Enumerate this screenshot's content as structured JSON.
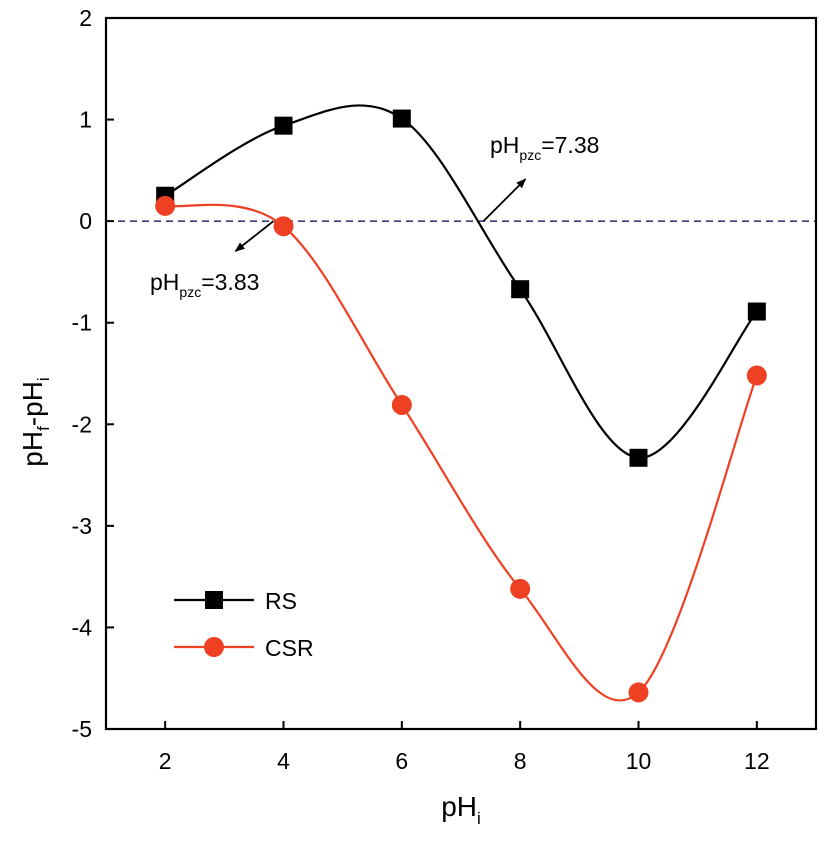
{
  "chart_data": {
    "type": "line",
    "title": "",
    "xlabel": {
      "main": "pH",
      "sub": "i"
    },
    "ylabel": {
      "p1": "pH",
      "s1": "f",
      "p2": "-pH",
      "s2": "i"
    },
    "xlim": [
      1,
      13
    ],
    "ylim": [
      -5,
      2
    ],
    "xticks": [
      2,
      4,
      6,
      8,
      10,
      12
    ],
    "yticks": [
      2,
      1,
      0,
      -1,
      -2,
      -3,
      -4,
      -5
    ],
    "xtick_labels": [
      "2",
      "4",
      "6",
      "8",
      "10",
      "12"
    ],
    "ytick_labels": [
      "2",
      "1",
      "0",
      "-1",
      "-2",
      "-3",
      "-4",
      "-5"
    ],
    "grid": false,
    "legend_position": "bottom-left",
    "reference_line": {
      "y": 0,
      "style": "dashed",
      "color": "#3b3b7a"
    },
    "series": [
      {
        "name": "RS",
        "marker": "square",
        "color": "#000000",
        "x": [
          2,
          4,
          6,
          8,
          10,
          12
        ],
        "y": [
          0.25,
          0.94,
          1.01,
          -0.67,
          -2.33,
          -0.89
        ]
      },
      {
        "name": "CSR",
        "marker": "circle",
        "color": "#ee4023",
        "x": [
          2,
          4,
          6,
          8,
          10,
          12
        ],
        "y": [
          0.15,
          -0.05,
          -1.81,
          -3.62,
          -4.64,
          -1.52
        ]
      }
    ],
    "annotations": [
      {
        "main": "pH",
        "sub": "pzc",
        "value": "=7.38",
        "point_x": 7.38,
        "point_y": 0,
        "direction": "up-right"
      },
      {
        "main": "pH",
        "sub": "pzc",
        "value": "=3.83",
        "point_x": 3.83,
        "point_y": 0,
        "direction": "down-left"
      }
    ]
  }
}
